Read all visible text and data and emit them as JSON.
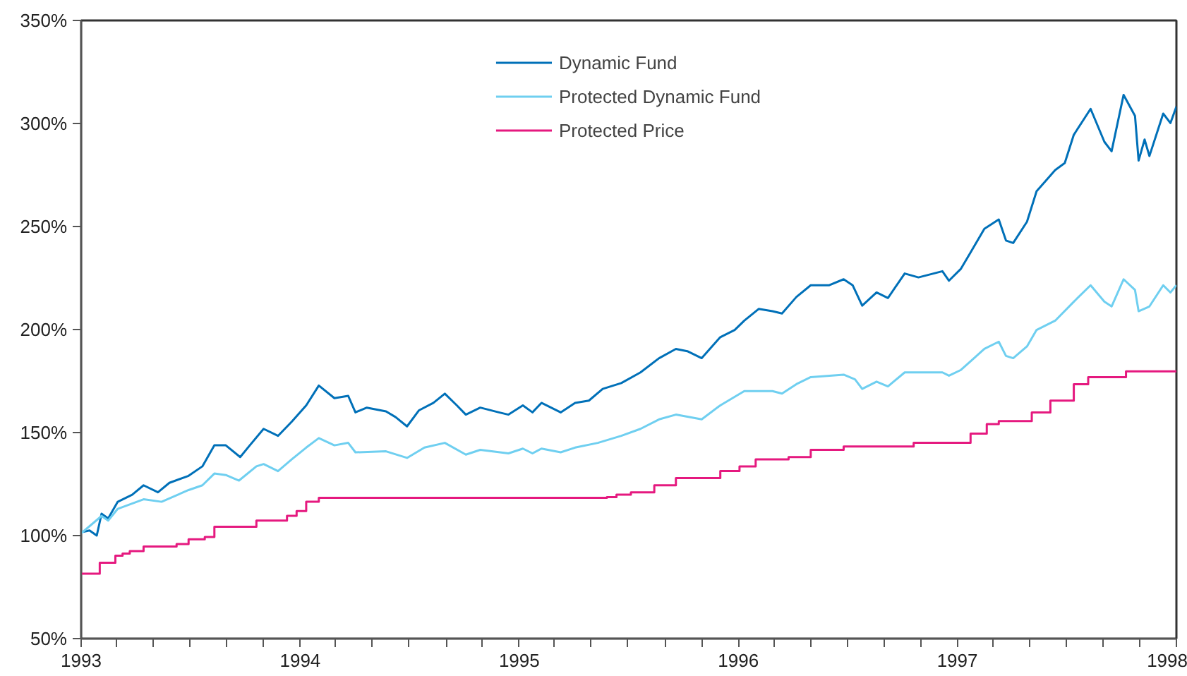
{
  "chart_data": {
    "type": "line",
    "xlim": [
      "1993-01-01",
      "1998-01-01"
    ],
    "xticks": [
      {
        "value": "1993-01-01",
        "label": "1993"
      },
      {
        "value": "1993-03-01",
        "label": null
      },
      {
        "value": "1993-05-01",
        "label": null
      },
      {
        "value": "1993-07-01",
        "label": null
      },
      {
        "value": "1993-09-01",
        "label": null
      },
      {
        "value": "1993-11-01",
        "label": null
      },
      {
        "value": "1994-01-01",
        "label": "1994"
      },
      {
        "value": "1994-03-01",
        "label": null
      },
      {
        "value": "1994-05-01",
        "label": null
      },
      {
        "value": "1994-07-01",
        "label": null
      },
      {
        "value": "1994-09-01",
        "label": null
      },
      {
        "value": "1994-11-01",
        "label": null
      },
      {
        "value": "1995-01-01",
        "label": "1995"
      },
      {
        "value": "1995-03-01",
        "label": null
      },
      {
        "value": "1995-05-01",
        "label": null
      },
      {
        "value": "1995-07-01",
        "label": null
      },
      {
        "value": "1995-09-01",
        "label": null
      },
      {
        "value": "1995-11-01",
        "label": null
      },
      {
        "value": "1996-01-01",
        "label": "1996"
      },
      {
        "value": "1996-03-01",
        "label": null
      },
      {
        "value": "1996-05-01",
        "label": null
      },
      {
        "value": "1996-07-01",
        "label": null
      },
      {
        "value": "1996-09-01",
        "label": null
      },
      {
        "value": "1996-11-01",
        "label": null
      },
      {
        "value": "1997-01-01",
        "label": "1997"
      },
      {
        "value": "1997-03-01",
        "label": null
      },
      {
        "value": "1997-05-01",
        "label": null
      },
      {
        "value": "1997-07-01",
        "label": null
      },
      {
        "value": "1997-09-01",
        "label": null
      },
      {
        "value": "1997-11-01",
        "label": null
      },
      {
        "value": "1998-01-01",
        "label": "1998"
      }
    ],
    "ylim": [
      50,
      350
    ],
    "yticks": [
      {
        "value": 50,
        "label": "50%"
      },
      {
        "value": 100,
        "label": "100%"
      },
      {
        "value": 150,
        "label": "150%"
      },
      {
        "value": 200,
        "label": "200%"
      },
      {
        "value": 250,
        "label": "250%"
      },
      {
        "value": 300,
        "label": "300%"
      },
      {
        "value": 350,
        "label": "350%"
      }
    ],
    "grid": false,
    "legend": "top",
    "line_style": "solid",
    "marker": "none",
    "series": [
      {
        "name": "Dynamic Fund",
        "color": "#0070b8",
        "x": [
          "1993-01-01",
          "1993-01-15",
          "1993-01-27",
          "1993-02-04",
          "1993-02-15",
          "1993-03-03",
          "1993-03-27",
          "1993-04-15",
          "1993-05-09",
          "1993-05-28",
          "1993-06-29",
          "1993-07-22",
          "1993-08-11",
          "1993-08-30",
          "1993-09-23",
          "1993-10-09",
          "1993-11-01",
          "1993-11-25",
          "1993-12-18",
          "1994-01-11",
          "1994-02-01",
          "1994-02-27",
          "1994-03-22",
          "1994-04-03",
          "1994-04-22",
          "1994-05-24",
          "1994-06-09",
          "1994-06-28",
          "1994-07-18",
          "1994-08-11",
          "1994-08-30",
          "1994-09-19",
          "1994-10-04",
          "1994-10-28",
          "1994-11-28",
          "1994-12-14",
          "1995-01-07",
          "1995-01-23",
          "1995-02-07",
          "1995-03-11",
          "1995-04-04",
          "1995-04-27",
          "1995-05-20",
          "1995-06-20",
          "1995-07-22",
          "1995-08-22",
          "1995-09-19",
          "1995-10-08",
          "1995-11-01",
          "1995-12-02",
          "1995-12-26",
          "1996-01-11",
          "1996-02-04",
          "1996-02-27",
          "1996-03-14",
          "1996-04-07",
          "1996-05-01",
          "1996-06-01",
          "1996-06-25",
          "1996-07-10",
          "1996-07-26",
          "1996-08-19",
          "1996-09-07",
          "1996-10-05",
          "1996-10-28",
          "1996-12-07",
          "1996-12-18",
          "1997-01-07",
          "1997-01-23",
          "1997-02-15",
          "1997-03-11",
          "1997-03-23",
          "1997-04-04",
          "1997-04-27",
          "1997-05-13",
          "1997-06-13",
          "1997-06-29",
          "1997-07-14",
          "1997-08-11",
          "1997-09-03",
          "1997-09-15",
          "1997-10-05",
          "1997-10-24",
          "1997-10-30",
          "1997-11-09",
          "1997-11-17",
          "1997-12-10",
          "1997-12-22",
          "1998-01-01"
        ],
        "values": [
          101.6,
          102.5,
          100,
          110.6,
          108.3,
          116.4,
          119.8,
          124.4,
          121,
          125.6,
          129,
          133.6,
          143.8,
          143.8,
          138.1,
          143.8,
          151.8,
          148.4,
          155.3,
          163.2,
          172.8,
          166.7,
          167.8,
          159.8,
          162.1,
          160.3,
          157.5,
          153,
          160.8,
          164.4,
          168.9,
          163.2,
          158.7,
          162.1,
          159.8,
          158.7,
          163.2,
          159.8,
          164.4,
          159.8,
          164.4,
          165.5,
          171.2,
          174,
          179.2,
          186.1,
          190.6,
          189.5,
          186.1,
          196.3,
          199.8,
          204.3,
          210,
          208.9,
          207.8,
          215.8,
          221.5,
          221.5,
          224.4,
          221.5,
          211.6,
          218,
          215.3,
          227.2,
          225.3,
          228.3,
          223.7,
          229.5,
          237.4,
          248.9,
          253.4,
          243.2,
          242,
          252.3,
          267.1,
          277.4,
          280.8,
          294.5,
          307.1,
          291.1,
          286.5,
          313.9,
          303.7,
          282,
          292.2,
          284.2,
          304.8,
          300.2,
          308.2
        ]
      },
      {
        "name": "Protected Dynamic Fund",
        "color": "#6fcff0",
        "x": [
          "1993-01-01",
          "1993-02-04",
          "1993-02-15",
          "1993-03-03",
          "1993-04-15",
          "1993-05-15",
          "1993-06-29",
          "1993-07-22",
          "1993-08-11",
          "1993-08-30",
          "1993-09-21",
          "1993-10-20",
          "1993-11-01",
          "1993-11-25",
          "1993-12-18",
          "1994-01-11",
          "1994-02-01",
          "1994-02-27",
          "1994-03-22",
          "1994-04-03",
          "1994-05-24",
          "1994-06-28",
          "1994-07-27",
          "1994-08-30",
          "1994-10-04",
          "1994-10-28",
          "1994-12-14",
          "1995-01-07",
          "1995-01-23",
          "1995-02-07",
          "1995-03-11",
          "1995-04-04",
          "1995-05-12",
          "1995-06-20",
          "1995-07-22",
          "1995-08-22",
          "1995-09-19",
          "1995-11-01",
          "1995-12-02",
          "1996-01-11",
          "1996-02-27",
          "1996-03-14",
          "1996-04-07",
          "1996-05-01",
          "1996-06-25",
          "1996-07-14",
          "1996-07-26",
          "1996-08-19",
          "1996-09-07",
          "1996-10-05",
          "1996-12-07",
          "1996-12-18",
          "1997-01-07",
          "1997-02-15",
          "1997-03-11",
          "1997-03-23",
          "1997-04-04",
          "1997-04-27",
          "1997-05-13",
          "1997-06-13",
          "1997-07-14",
          "1997-08-11",
          "1997-09-03",
          "1997-09-15",
          "1997-10-05",
          "1997-10-24",
          "1997-10-30",
          "1997-11-17",
          "1997-12-10",
          "1997-12-22",
          "1998-01-01"
        ],
        "values": [
          101.1,
          109.5,
          107.3,
          113,
          117.6,
          116.4,
          122.1,
          124.4,
          130.1,
          129.4,
          126.7,
          133.6,
          134.7,
          131.3,
          137,
          142.7,
          147.3,
          143.8,
          145,
          140.4,
          140.9,
          137.7,
          142.7,
          145,
          139.3,
          141.6,
          139.9,
          142.2,
          139.9,
          142.2,
          140.4,
          142.7,
          145,
          148.4,
          151.8,
          156.4,
          158.7,
          156.4,
          163.2,
          170.1,
          170.1,
          168.9,
          173.5,
          176.9,
          178.1,
          175.8,
          171.2,
          174.7,
          172.4,
          179.2,
          179.2,
          177.6,
          180.4,
          190.6,
          194.1,
          187.2,
          186.1,
          191.8,
          199.8,
          204.3,
          213.5,
          221.5,
          213.5,
          211.2,
          224.4,
          219.2,
          208.9,
          211.2,
          221.5,
          218,
          221.5
        ]
      },
      {
        "name": "Protected Price",
        "color": "#e5197f",
        "type": "step",
        "x": [
          "1993-01-01",
          "1993-02-01",
          "1993-02-27",
          "1993-03-11",
          "1993-03-23",
          "1993-04-15",
          "1993-06-09",
          "1993-06-29",
          "1993-07-26",
          "1993-08-11",
          "1993-10-20",
          "1993-12-10",
          "1993-12-26",
          "1994-01-11",
          "1994-02-01",
          "1995-05-27",
          "1995-06-12",
          "1995-07-06",
          "1995-08-14",
          "1995-09-19",
          "1995-12-02",
          "1996-01-03",
          "1996-01-30",
          "1996-03-25",
          "1996-05-01",
          "1996-06-25",
          "1996-10-20",
          "1997-01-23",
          "1997-02-19",
          "1997-03-11",
          "1997-05-05",
          "1997-06-05",
          "1997-07-14",
          "1997-08-07",
          "1997-10-09",
          "1998-01-01"
        ],
        "values": [
          81.5,
          86.8,
          90.2,
          91.3,
          92.5,
          94.7,
          95.9,
          98.2,
          99.3,
          104.3,
          107.3,
          109.6,
          111.9,
          116.4,
          118.3,
          118.7,
          119.9,
          121,
          124.4,
          127.9,
          131.3,
          133.6,
          137,
          138.1,
          141.6,
          143.2,
          145,
          149.5,
          154.1,
          155.6,
          159.8,
          165.5,
          173.5,
          176.9,
          179.7,
          179.7
        ]
      }
    ]
  }
}
